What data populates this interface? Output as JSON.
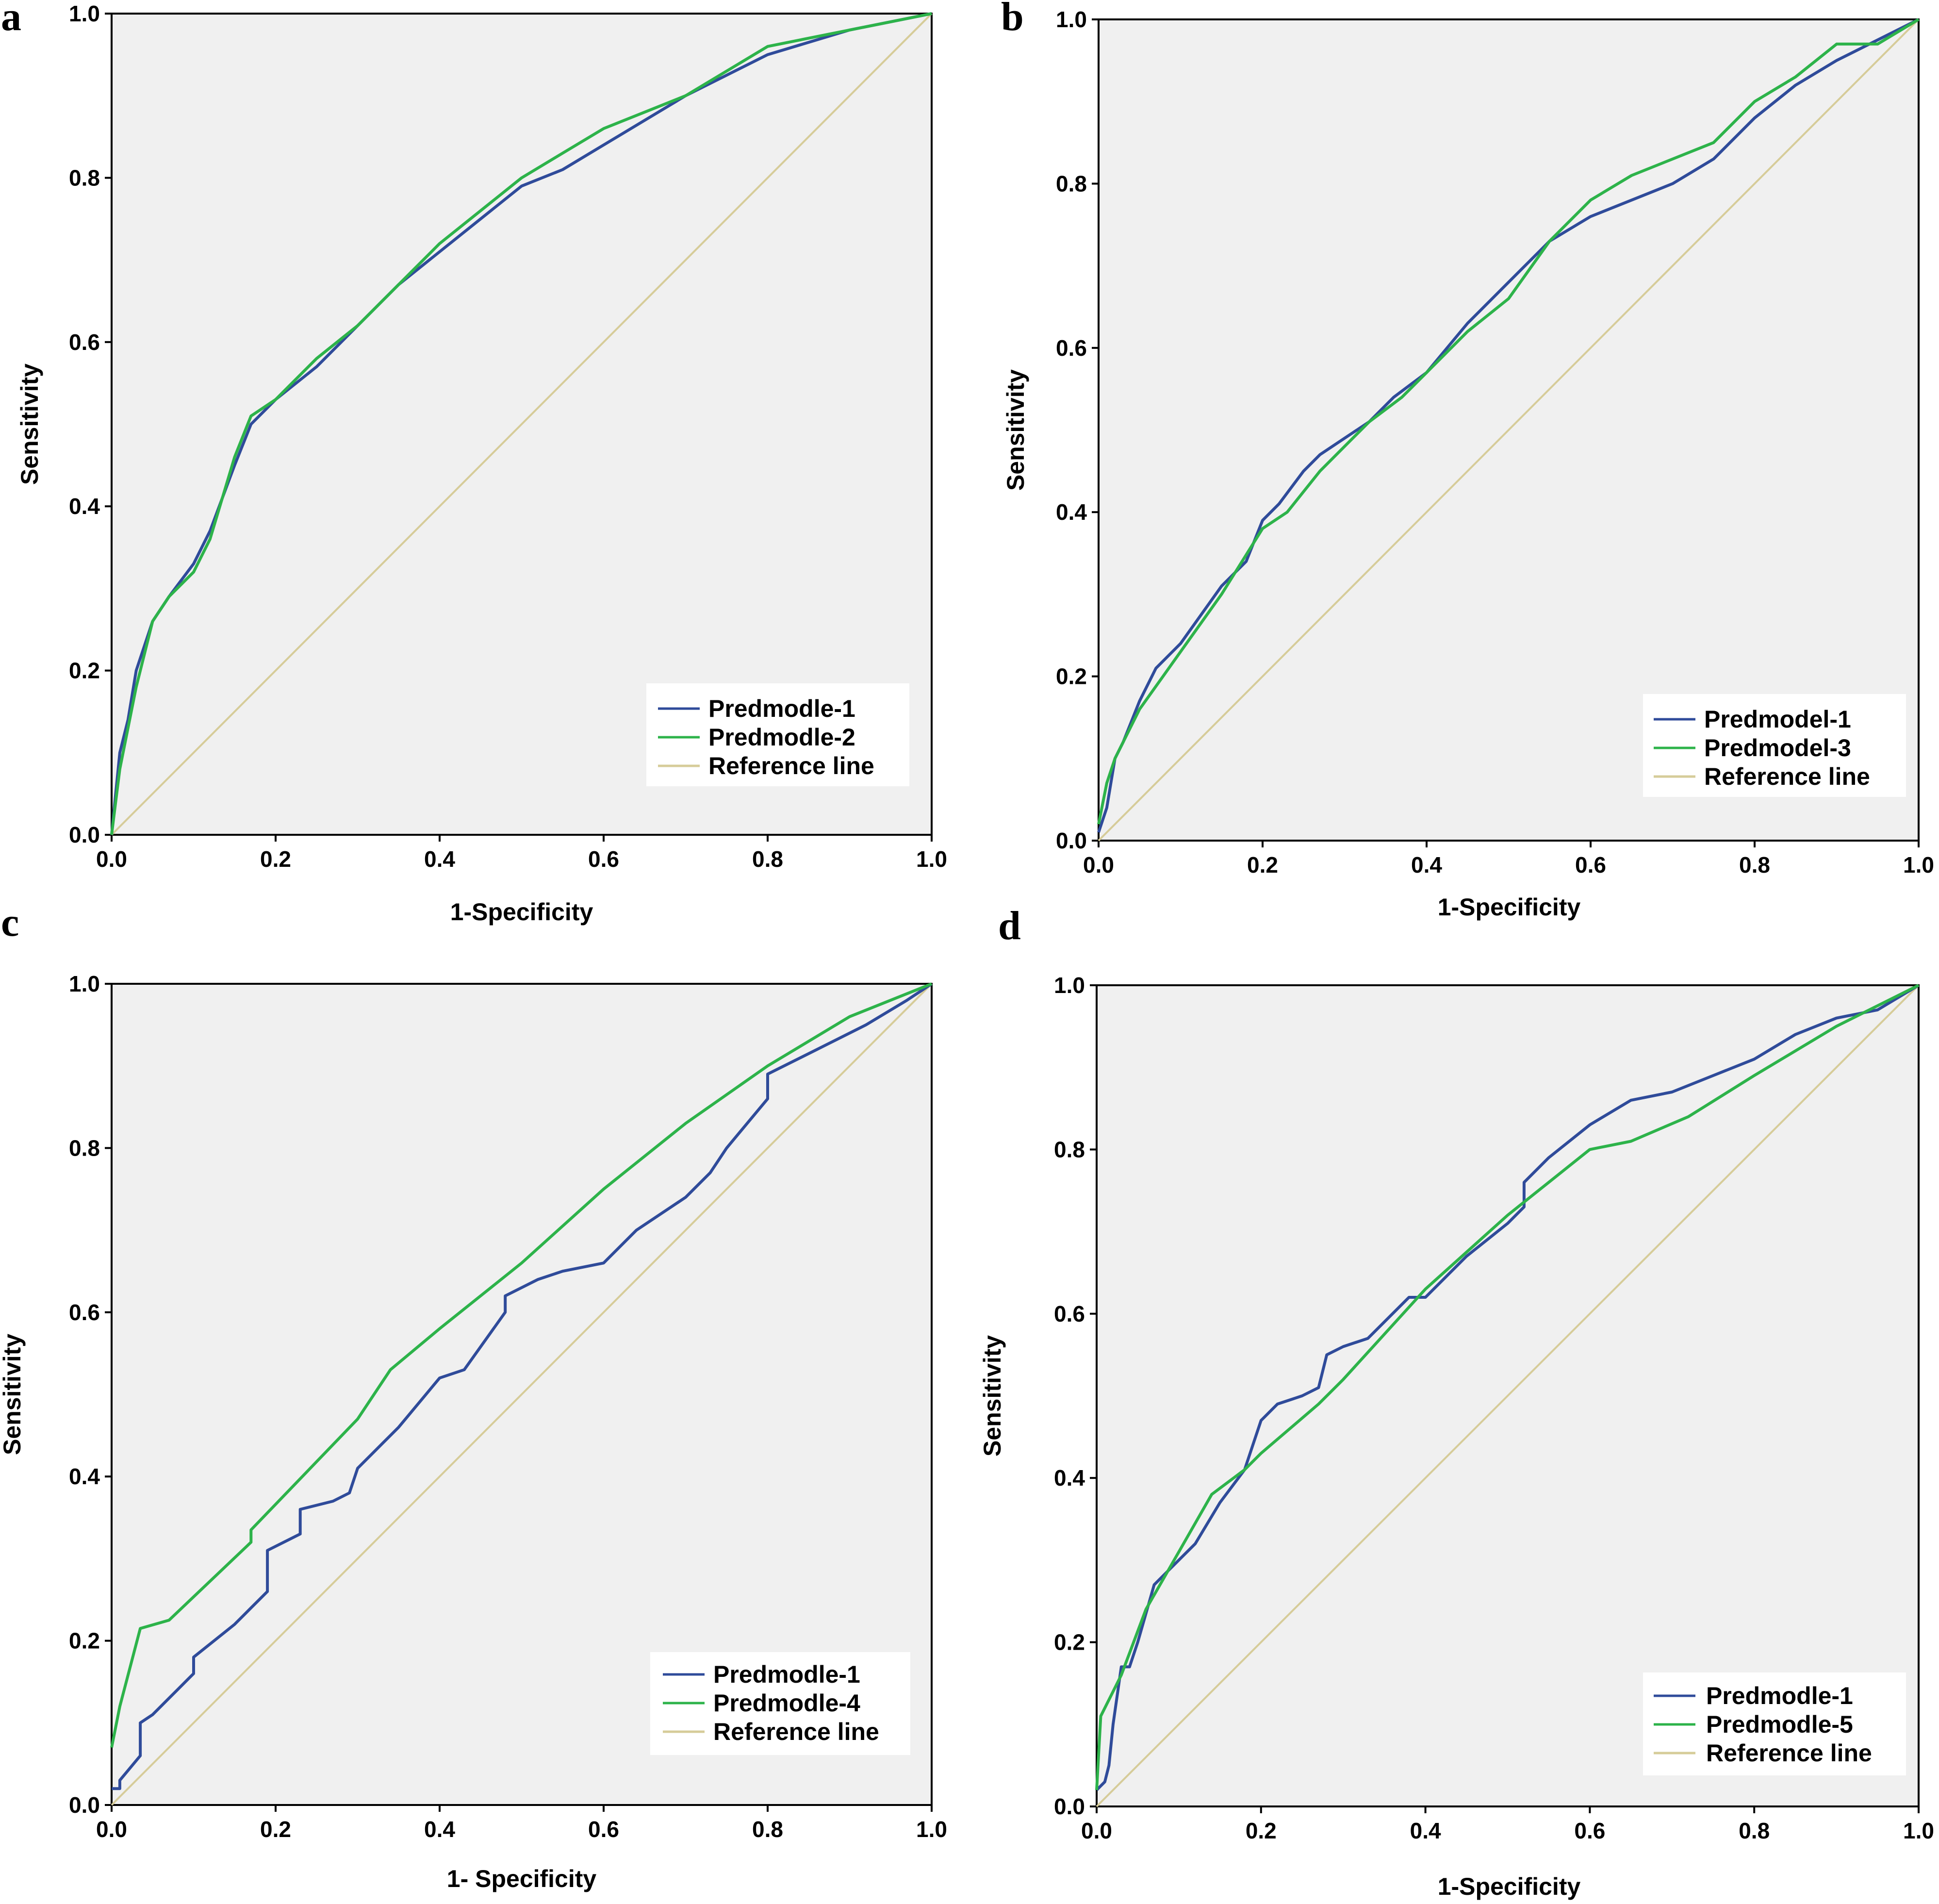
{
  "colors": {
    "model_blue": "#2f4b9a",
    "model_green": "#2db34a",
    "reference": "#d6cc99",
    "plot_bg": "#f0f0f0"
  },
  "chart_data": [
    {
      "panel": "a",
      "type": "line",
      "xlabel": "1-Specificity",
      "ylabel": "Sensitivity",
      "xlim": [
        0,
        1
      ],
      "ylim": [
        0,
        1
      ],
      "xticks": [
        "0.0",
        "0.2",
        "0.4",
        "0.6",
        "0.8",
        "1.0"
      ],
      "yticks": [
        "0.0",
        "0.2",
        "0.4",
        "0.6",
        "0.8",
        "1.0"
      ],
      "legend_position": "bottom-right",
      "series": [
        {
          "name": "Predmodle-1",
          "color": "model_blue",
          "points": [
            [
              0,
              0
            ],
            [
              0.005,
              0.05
            ],
            [
              0.01,
              0.1
            ],
            [
              0.02,
              0.14
            ],
            [
              0.03,
              0.2
            ],
            [
              0.04,
              0.23
            ],
            [
              0.05,
              0.26
            ],
            [
              0.07,
              0.29
            ],
            [
              0.1,
              0.33
            ],
            [
              0.12,
              0.37
            ],
            [
              0.15,
              0.45
            ],
            [
              0.17,
              0.5
            ],
            [
              0.2,
              0.53
            ],
            [
              0.25,
              0.57
            ],
            [
              0.3,
              0.62
            ],
            [
              0.35,
              0.67
            ],
            [
              0.4,
              0.71
            ],
            [
              0.45,
              0.75
            ],
            [
              0.5,
              0.79
            ],
            [
              0.55,
              0.81
            ],
            [
              0.6,
              0.84
            ],
            [
              0.7,
              0.9
            ],
            [
              0.8,
              0.95
            ],
            [
              0.9,
              0.98
            ],
            [
              1,
              1
            ]
          ]
        },
        {
          "name": "Predmodle-2",
          "color": "model_green",
          "points": [
            [
              0,
              0
            ],
            [
              0.005,
              0.04
            ],
            [
              0.01,
              0.08
            ],
            [
              0.02,
              0.13
            ],
            [
              0.03,
              0.18
            ],
            [
              0.04,
              0.22
            ],
            [
              0.05,
              0.26
            ],
            [
              0.07,
              0.29
            ],
            [
              0.1,
              0.32
            ],
            [
              0.12,
              0.36
            ],
            [
              0.15,
              0.46
            ],
            [
              0.17,
              0.51
            ],
            [
              0.2,
              0.53
            ],
            [
              0.25,
              0.58
            ],
            [
              0.3,
              0.62
            ],
            [
              0.35,
              0.67
            ],
            [
              0.4,
              0.72
            ],
            [
              0.45,
              0.76
            ],
            [
              0.5,
              0.8
            ],
            [
              0.55,
              0.83
            ],
            [
              0.6,
              0.86
            ],
            [
              0.7,
              0.9
            ],
            [
              0.8,
              0.96
            ],
            [
              0.9,
              0.98
            ],
            [
              1,
              1
            ]
          ]
        },
        {
          "name": "Reference line",
          "color": "reference",
          "points": [
            [
              0,
              0
            ],
            [
              1,
              1
            ]
          ]
        }
      ]
    },
    {
      "panel": "b",
      "type": "line",
      "xlabel": "1-Specificity",
      "ylabel": "Sensitivity",
      "xlim": [
        0,
        1
      ],
      "ylim": [
        0,
        1
      ],
      "xticks": [
        "0.0",
        "0.2",
        "0.4",
        "0.6",
        "0.8",
        "1.0"
      ],
      "yticks": [
        "0.0",
        "0.2",
        "0.4",
        "0.6",
        "0.8",
        "1.0"
      ],
      "legend_position": "bottom-right",
      "series": [
        {
          "name": "Predmodel-1",
          "color": "model_blue",
          "points": [
            [
              0,
              0.01
            ],
            [
              0.01,
              0.04
            ],
            [
              0.02,
              0.1
            ],
            [
              0.03,
              0.12
            ],
            [
              0.05,
              0.17
            ],
            [
              0.07,
              0.21
            ],
            [
              0.1,
              0.24
            ],
            [
              0.15,
              0.31
            ],
            [
              0.18,
              0.34
            ],
            [
              0.2,
              0.39
            ],
            [
              0.22,
              0.41
            ],
            [
              0.25,
              0.45
            ],
            [
              0.27,
              0.47
            ],
            [
              0.3,
              0.49
            ],
            [
              0.33,
              0.51
            ],
            [
              0.36,
              0.54
            ],
            [
              0.4,
              0.57
            ],
            [
              0.45,
              0.63
            ],
            [
              0.48,
              0.66
            ],
            [
              0.5,
              0.68
            ],
            [
              0.55,
              0.73
            ],
            [
              0.6,
              0.76
            ],
            [
              0.7,
              0.8
            ],
            [
              0.75,
              0.83
            ],
            [
              0.8,
              0.88
            ],
            [
              0.85,
              0.92
            ],
            [
              0.9,
              0.95
            ],
            [
              1,
              1
            ]
          ]
        },
        {
          "name": "Predmodel-3",
          "color": "model_green",
          "points": [
            [
              0,
              0.02
            ],
            [
              0.01,
              0.07
            ],
            [
              0.02,
              0.1
            ],
            [
              0.05,
              0.16
            ],
            [
              0.1,
              0.23
            ],
            [
              0.15,
              0.3
            ],
            [
              0.2,
              0.38
            ],
            [
              0.23,
              0.4
            ],
            [
              0.27,
              0.45
            ],
            [
              0.3,
              0.48
            ],
            [
              0.33,
              0.51
            ],
            [
              0.37,
              0.54
            ],
            [
              0.4,
              0.57
            ],
            [
              0.45,
              0.62
            ],
            [
              0.5,
              0.66
            ],
            [
              0.55,
              0.73
            ],
            [
              0.6,
              0.78
            ],
            [
              0.65,
              0.81
            ],
            [
              0.7,
              0.83
            ],
            [
              0.75,
              0.85
            ],
            [
              0.8,
              0.9
            ],
            [
              0.85,
              0.93
            ],
            [
              0.9,
              0.97
            ],
            [
              0.95,
              0.97
            ],
            [
              1,
              1
            ]
          ]
        },
        {
          "name": "Reference line",
          "color": "reference",
          "points": [
            [
              0,
              0
            ],
            [
              1,
              1
            ]
          ]
        }
      ]
    },
    {
      "panel": "c",
      "type": "line",
      "xlabel": "1- Specificity",
      "ylabel": "Sensitivity",
      "xlim": [
        0,
        1
      ],
      "ylim": [
        0,
        1
      ],
      "xticks": [
        "0.0",
        "0.2",
        "0.4",
        "0.6",
        "0.8",
        "1.0"
      ],
      "yticks": [
        "0.0",
        "0.2",
        "0.4",
        "0.6",
        "0.8",
        "1.0"
      ],
      "legend_position": "bottom-right",
      "series": [
        {
          "name": "Predmodle-1",
          "color": "model_blue",
          "points": [
            [
              0,
              0.02
            ],
            [
              0.01,
              0.02
            ],
            [
              0.01,
              0.03
            ],
            [
              0.035,
              0.06
            ],
            [
              0.035,
              0.1
            ],
            [
              0.05,
              0.11
            ],
            [
              0.07,
              0.13
            ],
            [
              0.08,
              0.14
            ],
            [
              0.1,
              0.16
            ],
            [
              0.1,
              0.18
            ],
            [
              0.15,
              0.22
            ],
            [
              0.17,
              0.24
            ],
            [
              0.19,
              0.26
            ],
            [
              0.19,
              0.31
            ],
            [
              0.23,
              0.33
            ],
            [
              0.23,
              0.36
            ],
            [
              0.27,
              0.37
            ],
            [
              0.29,
              0.38
            ],
            [
              0.3,
              0.41
            ],
            [
              0.33,
              0.44
            ],
            [
              0.35,
              0.46
            ],
            [
              0.4,
              0.52
            ],
            [
              0.43,
              0.53
            ],
            [
              0.48,
              0.6
            ],
            [
              0.48,
              0.62
            ],
            [
              0.52,
              0.64
            ],
            [
              0.55,
              0.65
            ],
            [
              0.6,
              0.66
            ],
            [
              0.64,
              0.7
            ],
            [
              0.7,
              0.74
            ],
            [
              0.73,
              0.77
            ],
            [
              0.75,
              0.8
            ],
            [
              0.8,
              0.86
            ],
            [
              0.8,
              0.89
            ],
            [
              0.86,
              0.92
            ],
            [
              0.92,
              0.95
            ],
            [
              0.97,
              0.98
            ],
            [
              1,
              1
            ]
          ]
        },
        {
          "name": "Predmodle-4",
          "color": "model_green",
          "points": [
            [
              0,
              0.07
            ],
            [
              0.01,
              0.12
            ],
            [
              0.035,
              0.215
            ],
            [
              0.07,
              0.225
            ],
            [
              0.17,
              0.32
            ],
            [
              0.17,
              0.335
            ],
            [
              0.3,
              0.47
            ],
            [
              0.34,
              0.53
            ],
            [
              0.4,
              0.58
            ],
            [
              0.5,
              0.66
            ],
            [
              0.6,
              0.75
            ],
            [
              0.7,
              0.83
            ],
            [
              0.8,
              0.9
            ],
            [
              0.9,
              0.96
            ],
            [
              1,
              1
            ]
          ]
        },
        {
          "name": "Reference line",
          "color": "reference",
          "points": [
            [
              0,
              0
            ],
            [
              1,
              1
            ]
          ]
        }
      ]
    },
    {
      "panel": "d",
      "type": "line",
      "xlabel": "1-Specificity",
      "ylabel": "Sensitivity",
      "xlim": [
        0,
        1
      ],
      "ylim": [
        0,
        1
      ],
      "xticks": [
        "0.0",
        "0.2",
        "0.4",
        "0.6",
        "0.8",
        "1.0"
      ],
      "yticks": [
        "0.0",
        "0.2",
        "0.4",
        "0.6",
        "0.8",
        "1.0"
      ],
      "legend_position": "bottom-right",
      "series": [
        {
          "name": "Predmodle-1",
          "color": "model_blue",
          "points": [
            [
              0,
              0.02
            ],
            [
              0.01,
              0.03
            ],
            [
              0.015,
              0.05
            ],
            [
              0.02,
              0.1
            ],
            [
              0.03,
              0.17
            ],
            [
              0.04,
              0.17
            ],
            [
              0.05,
              0.2
            ],
            [
              0.07,
              0.27
            ],
            [
              0.1,
              0.3
            ],
            [
              0.12,
              0.32
            ],
            [
              0.15,
              0.37
            ],
            [
              0.18,
              0.41
            ],
            [
              0.2,
              0.47
            ],
            [
              0.22,
              0.49
            ],
            [
              0.25,
              0.5
            ],
            [
              0.27,
              0.51
            ],
            [
              0.28,
              0.55
            ],
            [
              0.3,
              0.56
            ],
            [
              0.33,
              0.57
            ],
            [
              0.35,
              0.59
            ],
            [
              0.38,
              0.62
            ],
            [
              0.4,
              0.62
            ],
            [
              0.45,
              0.67
            ],
            [
              0.5,
              0.71
            ],
            [
              0.52,
              0.73
            ],
            [
              0.52,
              0.76
            ],
            [
              0.55,
              0.79
            ],
            [
              0.6,
              0.83
            ],
            [
              0.65,
              0.86
            ],
            [
              0.7,
              0.87
            ],
            [
              0.75,
              0.89
            ],
            [
              0.8,
              0.91
            ],
            [
              0.85,
              0.94
            ],
            [
              0.9,
              0.96
            ],
            [
              0.95,
              0.97
            ],
            [
              1,
              1
            ]
          ]
        },
        {
          "name": "Predmodle-5",
          "color": "model_green",
          "points": [
            [
              0,
              0.02
            ],
            [
              0.005,
              0.11
            ],
            [
              0.03,
              0.16
            ],
            [
              0.06,
              0.24
            ],
            [
              0.1,
              0.31
            ],
            [
              0.14,
              0.38
            ],
            [
              0.18,
              0.41
            ],
            [
              0.2,
              0.43
            ],
            [
              0.27,
              0.49
            ],
            [
              0.3,
              0.52
            ],
            [
              0.4,
              0.63
            ],
            [
              0.5,
              0.72
            ],
            [
              0.55,
              0.76
            ],
            [
              0.6,
              0.8
            ],
            [
              0.65,
              0.81
            ],
            [
              0.72,
              0.84
            ],
            [
              0.8,
              0.89
            ],
            [
              0.9,
              0.95
            ],
            [
              1,
              1
            ]
          ]
        },
        {
          "name": "Reference line",
          "color": "reference",
          "points": [
            [
              0,
              0
            ],
            [
              1,
              1
            ]
          ]
        }
      ]
    }
  ]
}
